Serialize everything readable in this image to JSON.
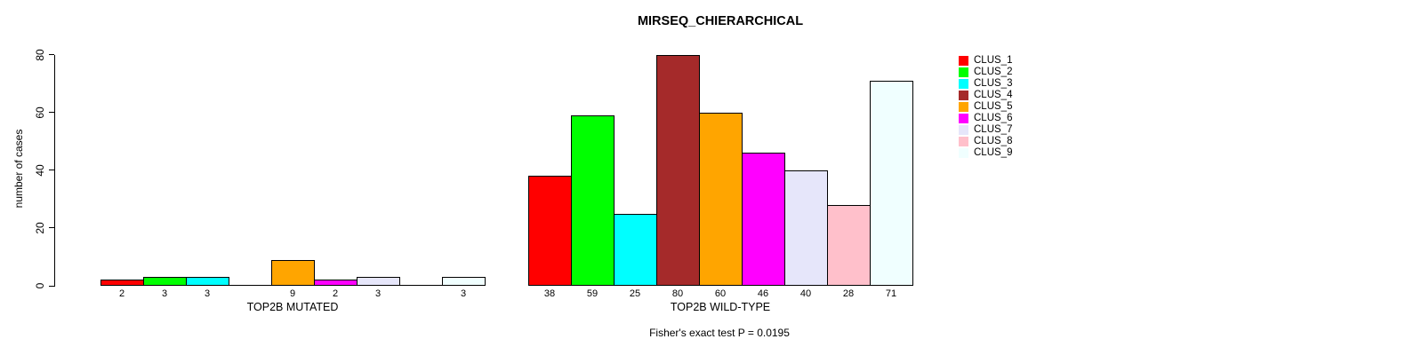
{
  "chart_data": {
    "type": "bar",
    "title": "MIRSEQ_CHIERARCHICAL",
    "ylabel": "number of cases",
    "xlabel": "",
    "ylim": [
      0,
      80
    ],
    "yticks": [
      0,
      20,
      40,
      60,
      80
    ],
    "grid": false,
    "legend_position": "right",
    "categories": [
      "CLUS_1",
      "CLUS_2",
      "CLUS_3",
      "CLUS_4",
      "CLUS_5",
      "CLUS_6",
      "CLUS_7",
      "CLUS_8",
      "CLUS_9"
    ],
    "colors": [
      "#FF0000",
      "#00FF00",
      "#00FFFF",
      "#A52A2A",
      "#FFA500",
      "#FF00FF",
      "#E6E6FA",
      "#FFC0CB",
      "#F0FFFF"
    ],
    "series": [
      {
        "name": "TOP2B MUTATED",
        "values": [
          2,
          3,
          3,
          0,
          9,
          2,
          3,
          0,
          3
        ]
      },
      {
        "name": "TOP2B WILD-TYPE",
        "values": [
          38,
          59,
          25,
          80,
          60,
          46,
          40,
          28,
          71
        ]
      }
    ],
    "bar_value_labels_shown": true,
    "zero_value_labels_hidden": true,
    "annotation": "Fisher's exact test P = 0.0195"
  }
}
